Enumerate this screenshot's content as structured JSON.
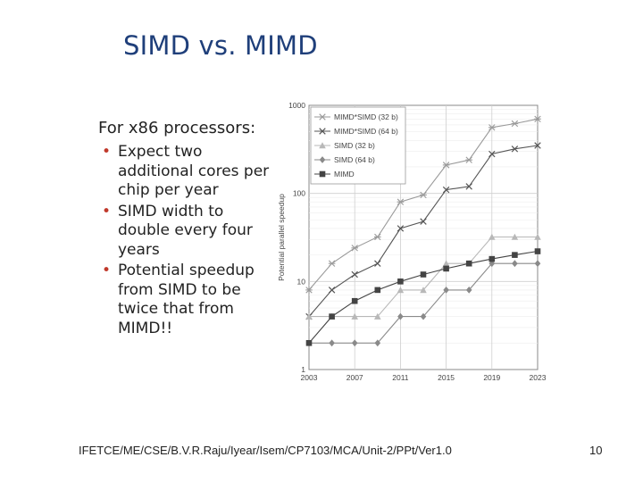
{
  "slide": {
    "title": "SIMD vs. MIMD",
    "lede": "For x86 processors:",
    "bullets": [
      "Expect two additional cores per chip per year",
      "SIMD width to double every four years",
      "Potential speedup from SIMD to be twice that from MIMD!!"
    ],
    "footer": "IFETCE/ME/CSE/B.V.R.Raju/Iyear/Isem/CP7103/MCA/Unit-2/PPt/Ver1.0",
    "page_number": "10"
  },
  "colors": {
    "title": "#1f3f7a",
    "bullet": "#c0392b"
  },
  "chart_data": {
    "type": "line",
    "title": "",
    "xlabel": "",
    "ylabel": "Potential parallel speedup",
    "yscale": "log",
    "ylim": [
      1,
      1000
    ],
    "xlim": [
      2003,
      2023
    ],
    "x_ticks": [
      "2003",
      "2007",
      "2011",
      "2015",
      "2019",
      "2023"
    ],
    "y_ticks": [
      "1",
      "10",
      "100",
      "1000"
    ],
    "x": [
      2003,
      2005,
      2007,
      2009,
      2011,
      2013,
      2015,
      2017,
      2019,
      2021,
      2023
    ],
    "legend_position": "top-left",
    "series": [
      {
        "name": "MIMD*SIMD (32 b)",
        "marker": "asterisk",
        "color": "#9a9a9a",
        "values": [
          8,
          16,
          24,
          32,
          80,
          96,
          210,
          240,
          560,
          620,
          700
        ]
      },
      {
        "name": "MIMD*SIMD (64 b)",
        "marker": "x",
        "color": "#555555",
        "values": [
          4,
          8,
          12,
          16,
          40,
          48,
          110,
          120,
          280,
          320,
          350
        ]
      },
      {
        "name": "SIMD (32 b)",
        "marker": "triangle",
        "color": "#b8b8b8",
        "values": [
          4,
          4,
          4,
          4,
          8,
          8,
          16,
          16,
          32,
          32,
          32
        ]
      },
      {
        "name": "SIMD (64 b)",
        "marker": "diamond",
        "color": "#8a8a8a",
        "values": [
          2,
          2,
          2,
          2,
          4,
          4,
          8,
          8,
          16,
          16,
          16
        ]
      },
      {
        "name": "MIMD",
        "marker": "square",
        "color": "#444444",
        "values": [
          2,
          4,
          6,
          8,
          10,
          12,
          14,
          16,
          18,
          20,
          22
        ]
      }
    ]
  }
}
